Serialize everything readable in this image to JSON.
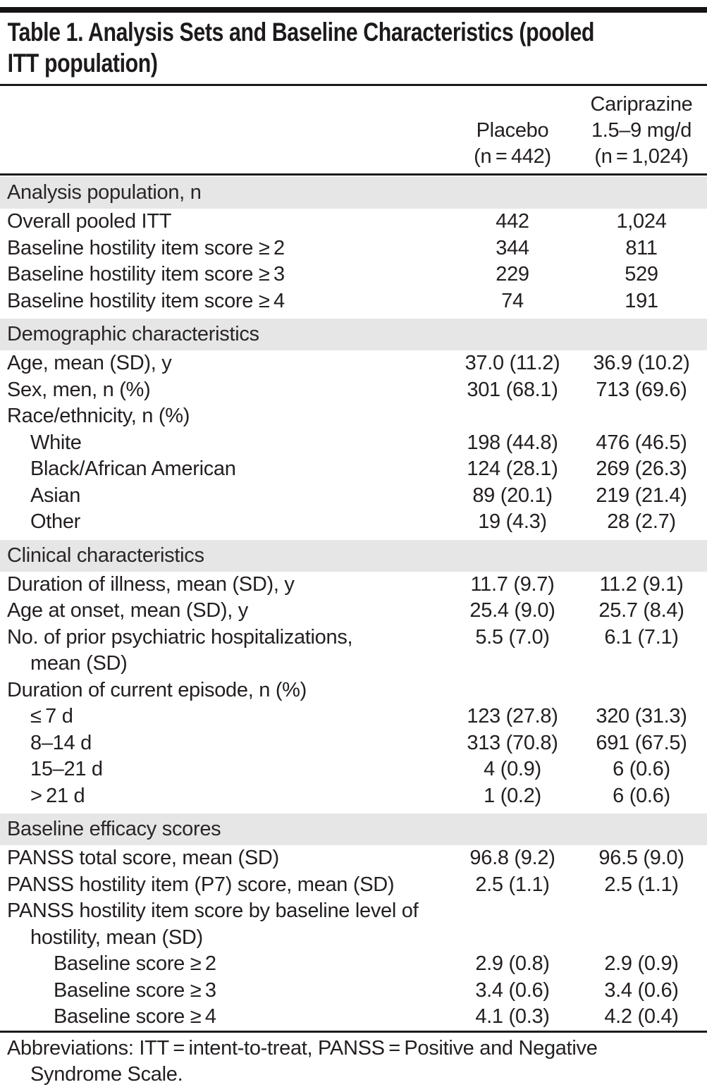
{
  "table": {
    "title": "Table 1. Analysis Sets and Baseline Characteristics (pooled\nITT population)",
    "columns": {
      "placebo": "Placebo\n(n = 442)",
      "cariprazine": "Cariprazine\n1.5–9 mg/d\n(n = 1,024)"
    },
    "sections": [
      {
        "header": "Analysis population, n",
        "rows": [
          {
            "label": "Overall pooled ITT",
            "indent": 0,
            "placebo": "442",
            "cariprazine": "1,024"
          },
          {
            "label": "Baseline hostility item score ≥ 2",
            "indent": 0,
            "placebo": "344",
            "cariprazine": "811"
          },
          {
            "label": "Baseline hostility item score ≥ 3",
            "indent": 0,
            "placebo": "229",
            "cariprazine": "529"
          },
          {
            "label": "Baseline hostility item score ≥ 4",
            "indent": 0,
            "placebo": "74",
            "cariprazine": "191"
          }
        ]
      },
      {
        "header": "Demographic characteristics",
        "rows": [
          {
            "label": "Age, mean (SD), y",
            "indent": 0,
            "placebo": "37.0 (11.2)",
            "cariprazine": "36.9 (10.2)"
          },
          {
            "label": "Sex, men, n (%)",
            "indent": 0,
            "placebo": "301 (68.1)",
            "cariprazine": "713 (69.6)"
          },
          {
            "label": "Race/ethnicity, n (%)",
            "indent": 0,
            "placebo": "",
            "cariprazine": ""
          },
          {
            "label": "White",
            "indent": 1,
            "placebo": "198 (44.8)",
            "cariprazine": "476 (46.5)"
          },
          {
            "label": "Black/African American",
            "indent": 1,
            "placebo": "124 (28.1)",
            "cariprazine": "269 (26.3)"
          },
          {
            "label": "Asian",
            "indent": 1,
            "placebo": "89 (20.1)",
            "cariprazine": "219 (21.4)"
          },
          {
            "label": "Other",
            "indent": 1,
            "placebo": "19 (4.3)",
            "cariprazine": "28 (2.7)"
          }
        ]
      },
      {
        "header": "Clinical characteristics",
        "rows": [
          {
            "label": "Duration of illness, mean (SD), y",
            "indent": 0,
            "placebo": "11.7 (9.7)",
            "cariprazine": "11.2 (9.1)"
          },
          {
            "label": "Age at onset, mean (SD), y",
            "indent": 0,
            "placebo": "25.4 (9.0)",
            "cariprazine": "25.7 (8.4)"
          },
          {
            "label": "No. of prior psychiatric hospitalizations,\nmean (SD)",
            "indent": 0,
            "placebo": "5.5 (7.0)",
            "cariprazine": "6.1 (7.1)"
          },
          {
            "label": "Duration of current episode, n (%)",
            "indent": 0,
            "placebo": "",
            "cariprazine": ""
          },
          {
            "label": "≤ 7 d",
            "indent": 1,
            "placebo": "123 (27.8)",
            "cariprazine": "320 (31.3)"
          },
          {
            "label": "8–14 d",
            "indent": 1,
            "placebo": "313 (70.8)",
            "cariprazine": "691 (67.5)"
          },
          {
            "label": "15–21 d",
            "indent": 1,
            "placebo": "4 (0.9)",
            "cariprazine": "6 (0.6)"
          },
          {
            "label": "> 21 d",
            "indent": 1,
            "placebo": "1 (0.2)",
            "cariprazine": "6 (0.6)"
          }
        ]
      },
      {
        "header": "Baseline efficacy scores",
        "rows": [
          {
            "label": "PANSS total score, mean (SD)",
            "indent": 0,
            "placebo": "96.8 (9.2)",
            "cariprazine": "96.5 (9.0)"
          },
          {
            "label": "PANSS hostility item (P7) score, mean (SD)",
            "indent": 0,
            "placebo": "2.5 (1.1)",
            "cariprazine": "2.5 (1.1)"
          },
          {
            "label": "PANSS hostility item score by baseline level of\nhostility, mean (SD)",
            "indent": 0,
            "placebo": "",
            "cariprazine": ""
          },
          {
            "label": "Baseline score ≥ 2",
            "indent": 2,
            "placebo": "2.9 (0.8)",
            "cariprazine": "2.9 (0.9)"
          },
          {
            "label": "Baseline score ≥ 3",
            "indent": 2,
            "placebo": "3.4 (0.6)",
            "cariprazine": "3.4 (0.6)"
          },
          {
            "label": "Baseline score ≥ 4",
            "indent": 2,
            "placebo": "4.1 (0.3)",
            "cariprazine": "4.2 (0.4)"
          }
        ]
      }
    ],
    "footnote": "Abbreviations: ITT = intent-to-treat, PANSS = Positive and Negative\nSyndrome Scale."
  }
}
